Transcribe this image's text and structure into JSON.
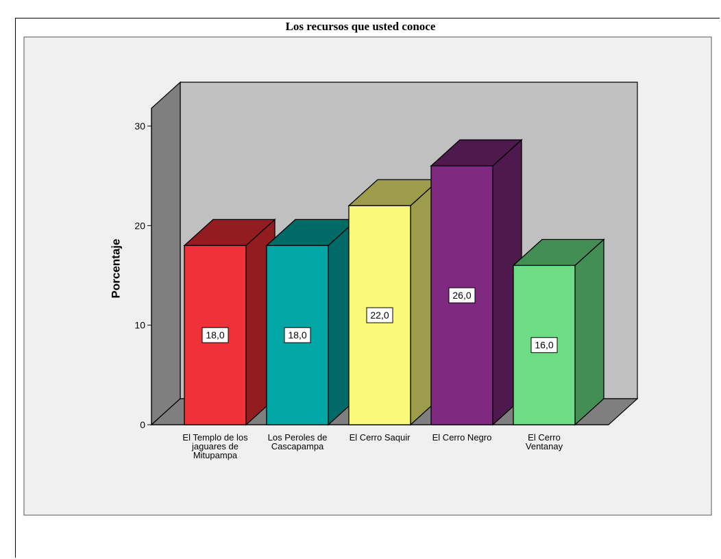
{
  "chart_data": {
    "type": "bar",
    "title": "Los  recursos que usted conoce",
    "ylabel": "Porcentaje",
    "xlabel": "",
    "ylim": [
      0,
      30
    ],
    "yticks": [
      0,
      10,
      20,
      30
    ],
    "categories": [
      [
        "El Templo de los",
        "jaguares de",
        "Mitupampa"
      ],
      [
        "Los Peroles de",
        "Cascapampa"
      ],
      [
        "El Cerro Saquir"
      ],
      [
        "El Cerro Negro"
      ],
      [
        "El Cerro",
        "Ventanay"
      ]
    ],
    "values": [
      18.0,
      18.0,
      22.0,
      26.0,
      16.0
    ],
    "data_labels": [
      "18,0",
      "18,0",
      "22,0",
      "26,0",
      "16,0"
    ],
    "style": "3d",
    "colors": [
      {
        "front": "#f03238",
        "side": "#921c20",
        "top": "#921c20"
      },
      {
        "front": "#00a7a5",
        "side": "#006a67",
        "top": "#006a67"
      },
      {
        "front": "#fafa78",
        "side": "#9c9c4a",
        "top": "#9c9c4a"
      },
      {
        "front": "#7f2a80",
        "side": "#4e1a4e",
        "top": "#4e1a4e"
      },
      {
        "front": "#6ddc85",
        "side": "#428e55",
        "top": "#428e55"
      }
    ],
    "panel_color": "#f0f0f0",
    "back_wall_color": "#c0c0c0",
    "side_wall_color": "#7f7f7f",
    "floor_color": "#7f7f7f"
  }
}
